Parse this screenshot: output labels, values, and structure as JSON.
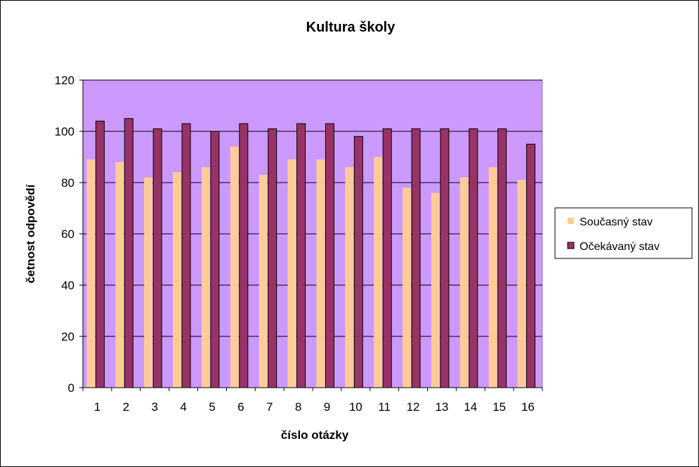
{
  "chart_data": {
    "type": "bar",
    "title": "Kultura školy",
    "xlabel": "číslo otázky",
    "ylabel": "četnost odpovědí",
    "categories": [
      "1",
      "2",
      "3",
      "4",
      "5",
      "6",
      "7",
      "8",
      "9",
      "10",
      "11",
      "12",
      "13",
      "14",
      "15",
      "16"
    ],
    "series": [
      {
        "name": "Současný stav",
        "color": "#ffcc99",
        "values": [
          89,
          88,
          82,
          84,
          86,
          94,
          83,
          89,
          89,
          86,
          90,
          78,
          76,
          82,
          86,
          81
        ]
      },
      {
        "name": "Očekávaný stav",
        "color": "#993366",
        "values": [
          104,
          105,
          101,
          103,
          100,
          103,
          101,
          103,
          103,
          98,
          101,
          101,
          101,
          101,
          101,
          95
        ]
      }
    ],
    "ylim": [
      0,
      120
    ],
    "yticks": [
      0,
      20,
      40,
      60,
      80,
      100,
      120
    ],
    "grid": true,
    "plot_background": "#cc99ff",
    "legend_position": "right"
  }
}
